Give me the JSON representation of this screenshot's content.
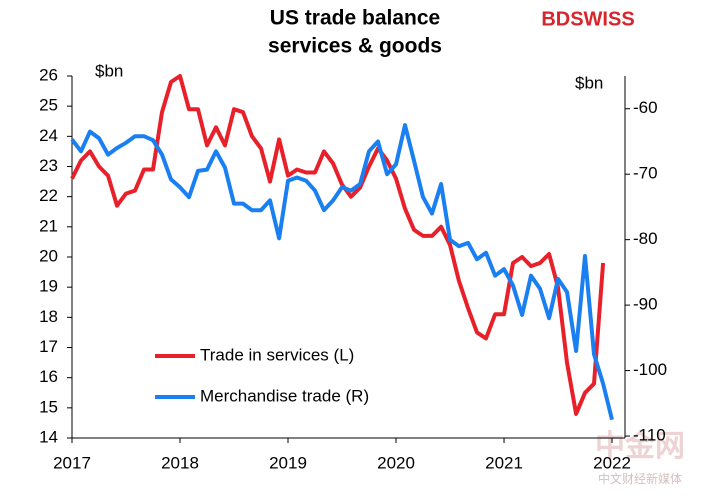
{
  "chart_data": {
    "type": "line",
    "title": [
      "US trade balance",
      "services & goods"
    ],
    "logo": "BDSWISS",
    "watermark": [
      "中金网",
      "中文财经新媒体"
    ],
    "y_label": "$bn",
    "y2_label": "$bn",
    "x": [
      2017,
      2017.083,
      2017.167,
      2017.25,
      2017.333,
      2017.417,
      2017.5,
      2017.583,
      2017.667,
      2017.75,
      2017.833,
      2017.917,
      2018,
      2018.083,
      2018.167,
      2018.25,
      2018.333,
      2018.417,
      2018.5,
      2018.583,
      2018.667,
      2018.75,
      2018.833,
      2018.917,
      2019,
      2019.083,
      2019.167,
      2019.25,
      2019.333,
      2019.417,
      2019.5,
      2019.583,
      2019.667,
      2019.75,
      2019.833,
      2019.917,
      2020,
      2020.083,
      2020.167,
      2020.25,
      2020.333,
      2020.417,
      2020.5,
      2020.583,
      2020.667,
      2020.75,
      2020.833,
      2020.917,
      2021,
      2021.083,
      2021.167,
      2021.25,
      2021.333,
      2021.417,
      2021.5,
      2021.583,
      2021.667,
      2021.75,
      2021.833,
      2021.917,
      2022
    ],
    "series": [
      {
        "name": "Trade in services (L)",
        "color": "#e8202a",
        "axis": "y",
        "values": [
          22.6,
          23.2,
          23.5,
          23.0,
          22.7,
          21.7,
          22.1,
          22.2,
          22.9,
          22.9,
          24.8,
          25.8,
          26.0,
          24.9,
          24.9,
          23.7,
          24.3,
          23.7,
          24.9,
          24.8,
          24.0,
          23.6,
          22.5,
          23.9,
          22.7,
          22.9,
          22.8,
          22.8,
          23.5,
          23.1,
          22.4,
          22.0,
          22.3,
          23.0,
          23.6,
          23.2,
          22.6,
          21.6,
          20.9,
          20.7,
          20.7,
          21.0,
          20.4,
          19.2,
          18.3,
          17.5,
          17.3,
          18.1,
          18.1,
          19.8,
          20.0,
          19.7,
          19.8,
          20.1,
          19.0,
          16.5,
          14.8,
          15.5,
          15.8,
          19.8,
          null
        ]
      },
      {
        "name": "Merchandise trade (R)",
        "color": "#1a7ff0",
        "axis": "y2",
        "values": [
          -64.7,
          -66.5,
          -63.5,
          -64.5,
          -67,
          -66,
          -65.2,
          -64.2,
          -64.2,
          -64.8,
          -67,
          -70.8,
          -72,
          -73.5,
          -69.5,
          -69.3,
          -66.5,
          -69,
          -74.5,
          -74.5,
          -75.5,
          -75.5,
          -74,
          -79.8,
          -71,
          -70.5,
          -71,
          -72.5,
          -75.5,
          -74,
          -72,
          -72.5,
          -71.5,
          -66.5,
          -65,
          -70,
          -68.5,
          -62.5,
          -68,
          -73.5,
          -76,
          -71.5,
          -80,
          -81,
          -80.5,
          -83,
          -82,
          -85.5,
          -84.5,
          -87,
          -91.5,
          -85.5,
          -87.5,
          -92,
          -86,
          -88,
          -97,
          -82.5,
          -97.5,
          -102,
          -107.5
        ]
      }
    ],
    "xlim": [
      2017,
      2022.12
    ],
    "xticks": [
      2017,
      2018,
      2019,
      2020,
      2021,
      2022
    ],
    "ylim": [
      14,
      26
    ],
    "yticks": [
      14,
      15,
      16,
      17,
      18,
      19,
      20,
      21,
      22,
      23,
      24,
      25,
      26
    ],
    "y2lim": [
      -110.3,
      -55
    ],
    "y2ticks": [
      -60,
      -70,
      -80,
      -90,
      -100,
      -110
    ]
  }
}
